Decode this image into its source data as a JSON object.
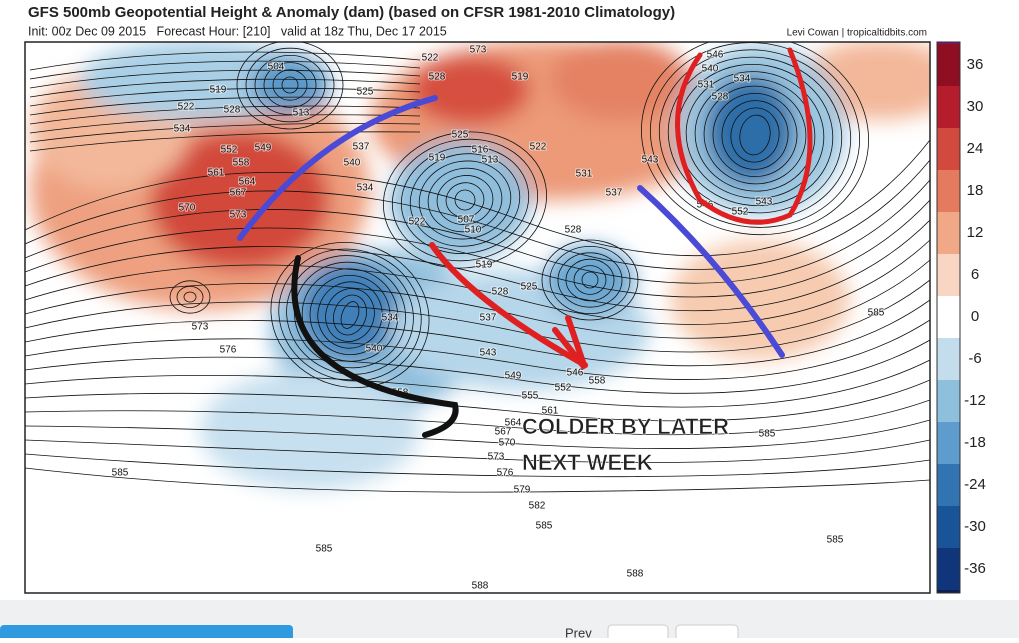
{
  "header": {
    "title": "GFS 500mb Geopotential Height & Anomaly (dam) (based on CFSR 1981-2010 Climatology)",
    "subtitle": "Init: 00z Dec 09 2015   Forecast Hour: [210]   valid at 18z Thu, Dec 17 2015",
    "credit": "Levi Cowan | tropicaltidbits.com"
  },
  "colorbar": {
    "ticks": [
      36,
      30,
      24,
      18,
      12,
      6,
      0,
      -6,
      -12,
      -18,
      -24,
      -30,
      -36
    ]
  },
  "map": {
    "annotation": [
      "COLDER BY LATER",
      "NEXT WEEK"
    ],
    "contour_labels": [
      504,
      519,
      522,
      528,
      534,
      513,
      525,
      522,
      528,
      573,
      519,
      546,
      540,
      531,
      534,
      528,
      543,
      546,
      543,
      552,
      537,
      531,
      522,
      516,
      513,
      525,
      519,
      507,
      510,
      522,
      519,
      528,
      525,
      528,
      540,
      537,
      534,
      552,
      549,
      558,
      561,
      564,
      567,
      570,
      573,
      573,
      576,
      534,
      540,
      537,
      543,
      549,
      546,
      552,
      555,
      558,
      561,
      564,
      567,
      570,
      573,
      576,
      579,
      582,
      585,
      558,
      585,
      585,
      585,
      585,
      588,
      585,
      588
    ]
  },
  "footer": {
    "prev": "Prev"
  }
}
